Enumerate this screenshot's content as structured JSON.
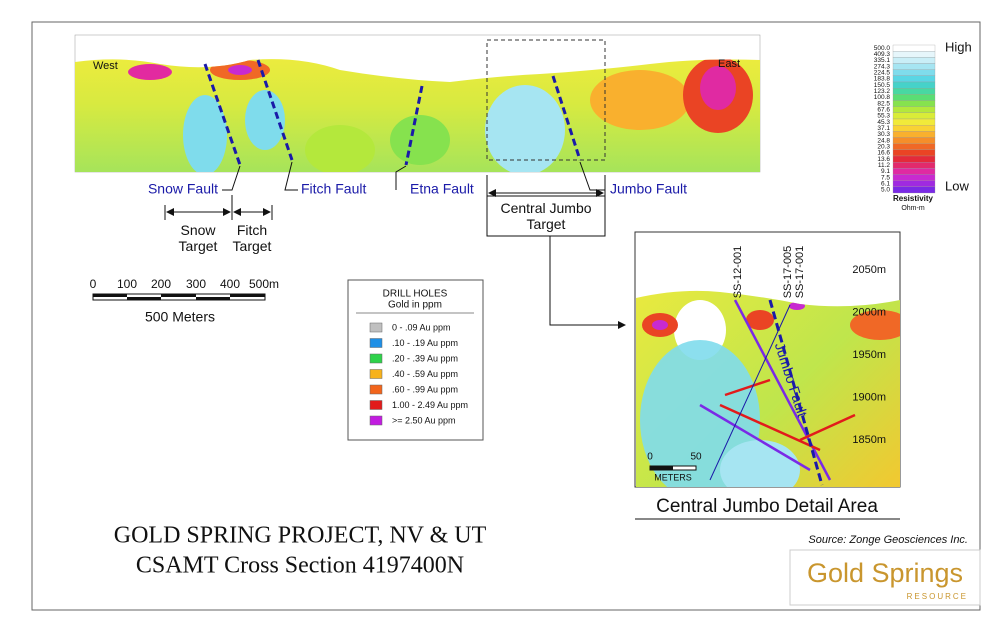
{
  "section": {
    "west": "West",
    "east": "East",
    "faults": [
      "Snow Fault",
      "Fitch Fault",
      "Etna Fault",
      "Jumbo Fault"
    ],
    "targets": [
      "Snow Target",
      "Fitch Target",
      "Central Jumbo Target"
    ]
  },
  "scale_bar": {
    "ticks": [
      "0",
      "100",
      "200",
      "300",
      "400",
      "500m"
    ],
    "caption": "500 Meters"
  },
  "drill_legend": {
    "title": "DRILL HOLES",
    "subtitle": "Gold in ppm",
    "items": [
      {
        "label": "0 - .09 Au ppm",
        "color": "#c0c0c0"
      },
      {
        "label": ".10 - .19 Au ppm",
        "color": "#1e8fe6"
      },
      {
        "label": ".20 - .39 Au ppm",
        "color": "#2ed24a"
      },
      {
        "label": ".40 - .59 Au ppm",
        "color": "#f7b21c"
      },
      {
        "label": ".60 - .99 Au ppm",
        "color": "#f2651c"
      },
      {
        "label": "1.00 - 2.49 Au ppm",
        "color": "#e21b1b"
      },
      {
        "label": ">= 2.50 Au ppm",
        "color": "#c21ce0"
      }
    ]
  },
  "resistivity_legend": {
    "high": "High",
    "low": "Low",
    "title": "Resistivity",
    "unit": "Ohm-m",
    "levels": [
      "500.0",
      "409.3",
      "335.1",
      "274.3",
      "224.5",
      "183.8",
      "150.5",
      "123.2",
      "100.8",
      "82.5",
      "67.6",
      "55.3",
      "45.3",
      "37.1",
      "30.3",
      "24.8",
      "20.3",
      "16.6",
      "13.6",
      "11.2",
      "9.1",
      "7.5",
      "6.1",
      "5.0"
    ],
    "colors": [
      "#ffffff",
      "#e6f6fb",
      "#c9eef7",
      "#a6e5f2",
      "#7fdcec",
      "#5ad6e4",
      "#46d2c9",
      "#48d8a2",
      "#5ade74",
      "#86e24e",
      "#b4e83c",
      "#d9ec38",
      "#f1ea3a",
      "#f9d234",
      "#f9b02e",
      "#f58e2a",
      "#f06826",
      "#ea4424",
      "#e42a3a",
      "#e22a6c",
      "#e02aa2",
      "#c82ad0",
      "#a02ae0",
      "#7a2ae6"
    ]
  },
  "detail": {
    "drill_holes": [
      "SS-12-001",
      "SS-17-005",
      "SS-17-001"
    ],
    "elevations": [
      "2050m",
      "2000m",
      "1950m",
      "1900m",
      "1850m"
    ],
    "fault": "Jumbo Fault",
    "scale_ticks": [
      "0",
      "50"
    ],
    "scale_unit": "METERS",
    "caption": "Central Jumbo Detail Area"
  },
  "title": [
    "GOLD SPRING PROJECT, NV & UT",
    "CSAMT Cross Section 4197400N"
  ],
  "source": "Source: Zonge Geosciences Inc.",
  "logo": {
    "name": "Gold Springs",
    "sub": "RESOURCE"
  }
}
